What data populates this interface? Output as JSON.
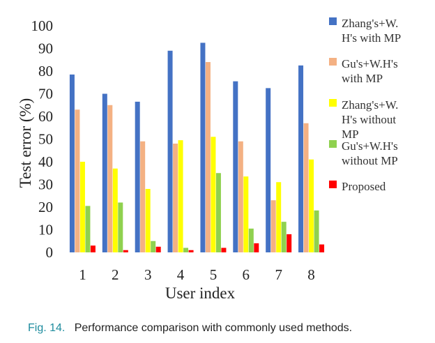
{
  "chart_data": {
    "type": "bar",
    "xlabel": "User index",
    "ylabel": "Test error (%)",
    "ylim": [
      0,
      100
    ],
    "yticks": [
      0,
      10,
      20,
      30,
      40,
      50,
      60,
      70,
      80,
      90,
      100
    ],
    "categories": [
      "1",
      "2",
      "3",
      "4",
      "5",
      "6",
      "7",
      "8"
    ],
    "grid": false,
    "legend_position": "right",
    "series": [
      {
        "name": [
          "Zhang's+W.",
          "H's with MP"
        ],
        "color": "#4472c4",
        "values": [
          78.5,
          70,
          66.5,
          89,
          92.5,
          75.5,
          72.5,
          82.5
        ]
      },
      {
        "name": [
          "Gu's+W.H's",
          "with MP"
        ],
        "color": "#f4b183",
        "values": [
          63,
          65,
          49,
          48,
          84,
          49,
          23,
          57
        ]
      },
      {
        "name": [
          "Zhang's+W.",
          "H's without",
          "MP"
        ],
        "color": "#ffff00",
        "values": [
          40,
          37,
          28,
          49.5,
          51,
          33.5,
          31,
          41
        ]
      },
      {
        "name": [
          "Gu's+W.H's",
          "without MP"
        ],
        "color": "#8fd14f",
        "values": [
          20.5,
          22,
          5,
          2,
          35,
          10.5,
          13.5,
          18.5
        ]
      },
      {
        "name": [
          "Proposed"
        ],
        "color": "#ff0000",
        "values": [
          3,
          1,
          2.5,
          1,
          2,
          4,
          8,
          3.5
        ]
      }
    ]
  },
  "caption": {
    "label": "Fig. 14.",
    "text": "Performance comparison with commonly used methods."
  }
}
